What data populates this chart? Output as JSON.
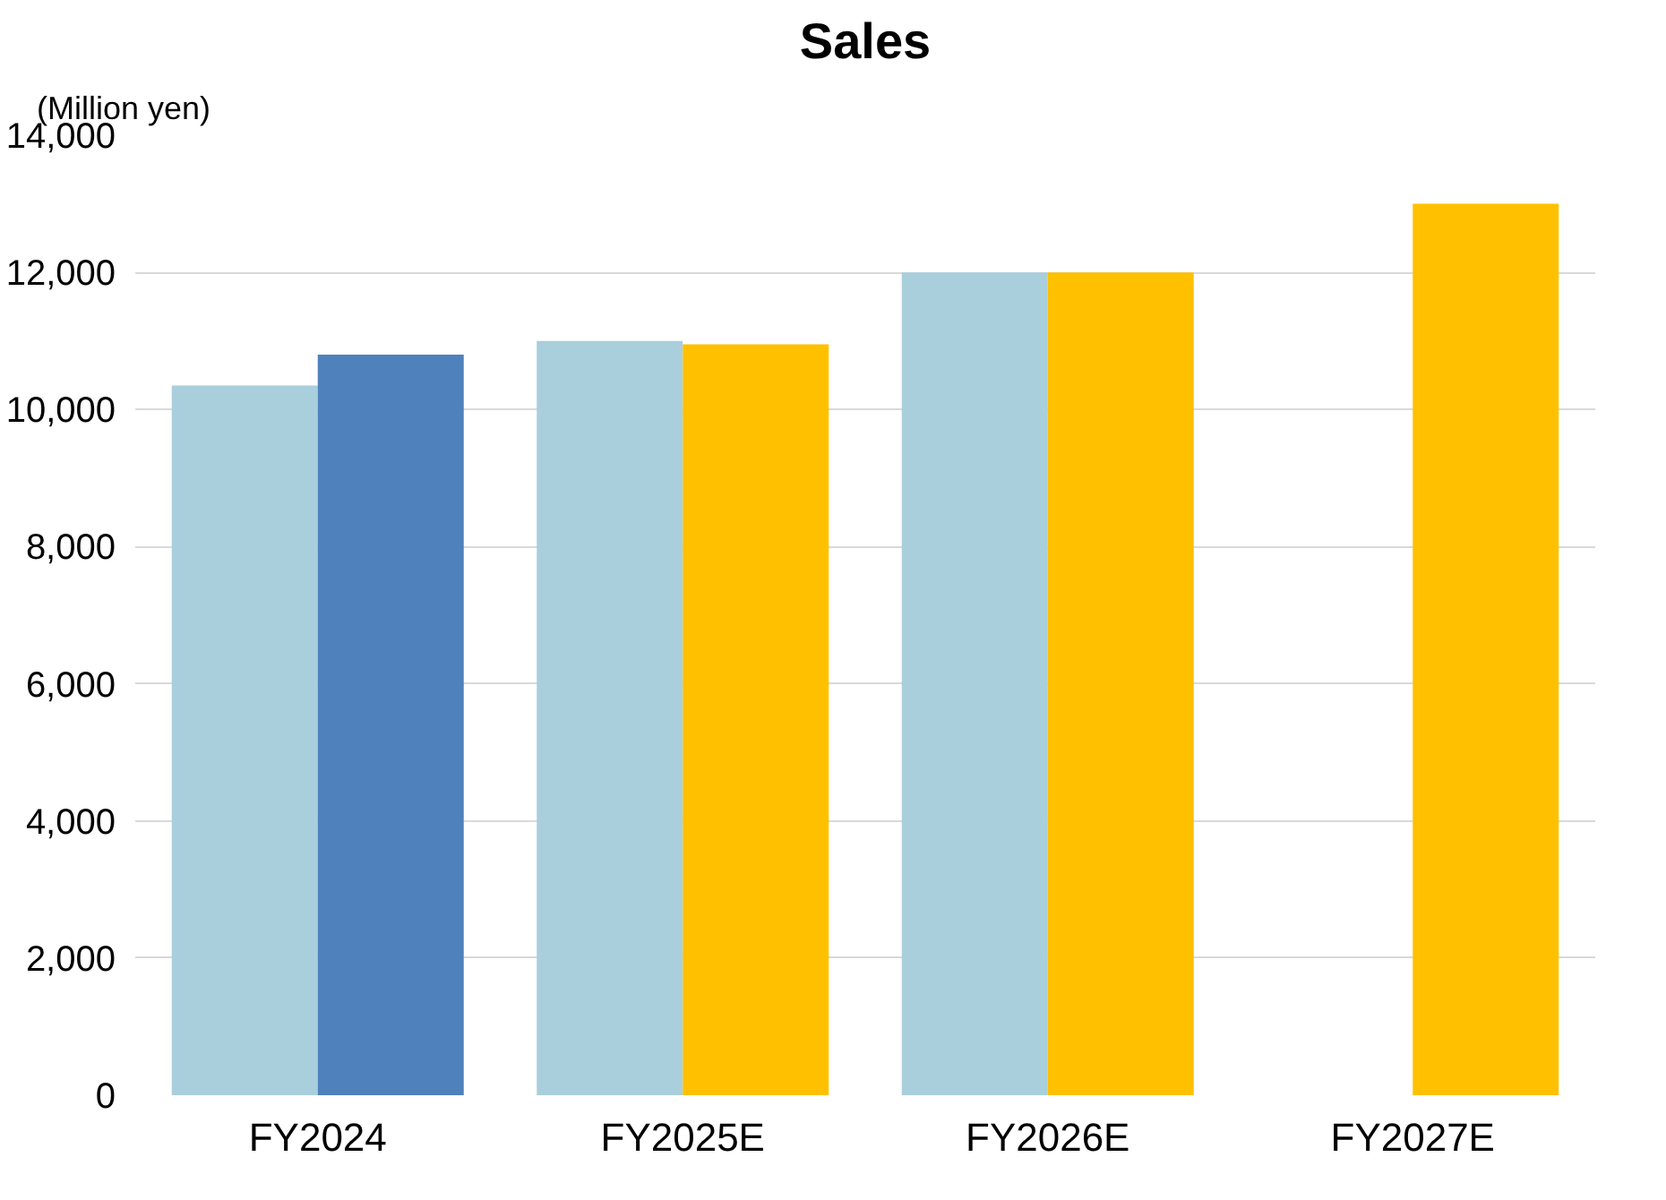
{
  "chart_data": {
    "type": "bar",
    "title": "Sales",
    "ylabel": "(Million yen)",
    "categories": [
      "FY2024",
      "FY2025E",
      "FY2026E",
      "FY2027E"
    ],
    "series": [
      {
        "color": "#a9cedc",
        "values": [
          10350,
          11000,
          12000,
          null
        ]
      },
      {
        "colors": [
          "#4f81bd",
          "#ffc000",
          "#ffc000",
          "#ffc000"
        ],
        "values": [
          10800,
          10950,
          12000,
          13000
        ]
      }
    ],
    "ylim": [
      0,
      14000
    ],
    "yticks": [
      {
        "value": 0,
        "label": "0"
      },
      {
        "value": 2000,
        "label": "2,000"
      },
      {
        "value": 4000,
        "label": "4,000"
      },
      {
        "value": 6000,
        "label": "6,000"
      },
      {
        "value": 8000,
        "label": "8,000"
      },
      {
        "value": 10000,
        "label": "10,000"
      },
      {
        "value": 12000,
        "label": "12,000"
      },
      {
        "value": 14000,
        "label": "14,000"
      }
    ],
    "grid": "y"
  }
}
